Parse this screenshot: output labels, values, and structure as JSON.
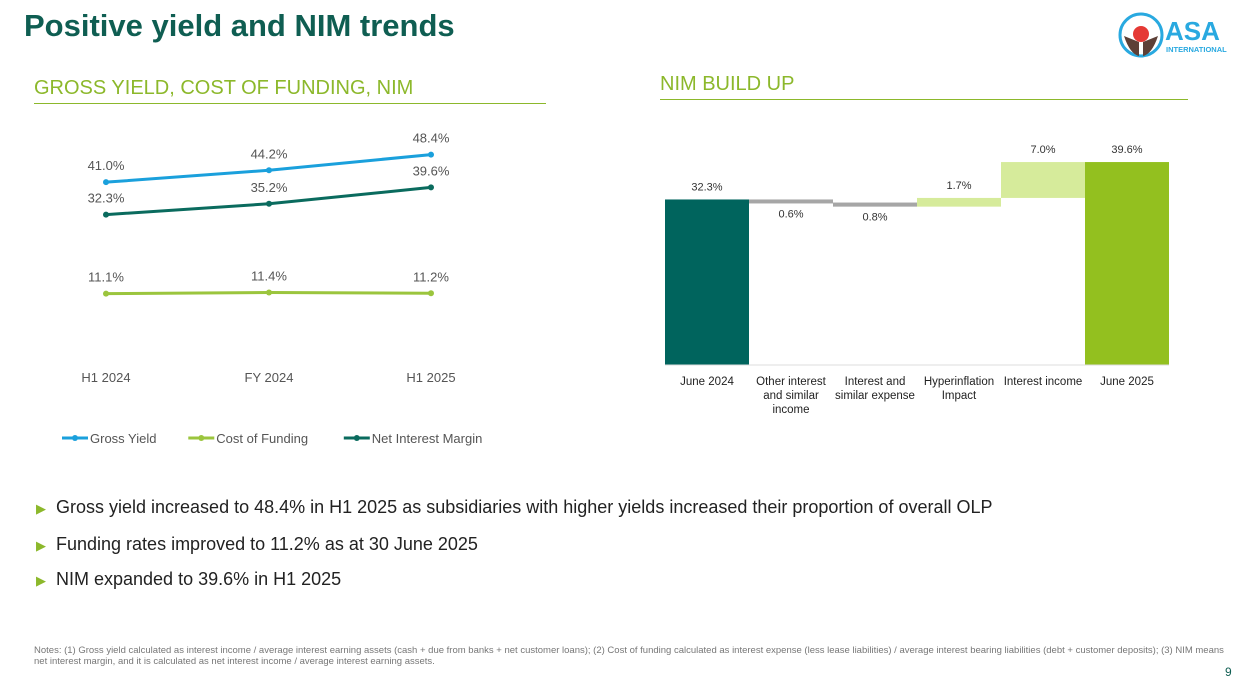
{
  "title": "Positive yield and NIM trends",
  "logo": {
    "name": "ASA",
    "sub": "INTERNATIONAL"
  },
  "page_number": "9",
  "bullets": [
    "Gross yield increased to 48.4% in H1 2025 as subsidiaries with higher yields increased their proportion of overall OLP",
    "Funding rates improved to 11.2% as at 30 June 2025",
    "NIM expanded to 39.6% in H1 2025"
  ],
  "notes": "Notes: (1) Gross yield calculated as interest income / average interest earning assets (cash + due from banks + net customer loans); (2) Cost of funding calculated as interest expense (less lease liabilities) / average interest bearing liabilities (debt + customer deposits); (3) NIM means net interest margin, and it is calculated as net interest income / average interest earning assets.",
  "chart_data": [
    {
      "type": "line",
      "title": "GROSS YIELD, COST OF FUNDING, NIM",
      "categories": [
        "H1 2024",
        "FY 2024",
        "H1 2025"
      ],
      "series": [
        {
          "name": "Gross Yield",
          "values": [
            41.0,
            44.2,
            48.4
          ],
          "labels": [
            "41.0%",
            "44.2%",
            "48.4%"
          ],
          "color": "#1aa0dc"
        },
        {
          "name": "Cost of Funding",
          "values": [
            11.1,
            11.4,
            11.2
          ],
          "labels": [
            "11.1%",
            "11.4%",
            "11.2%"
          ],
          "color": "#9bc53d"
        },
        {
          "name": "Net Interest Margin",
          "values": [
            32.3,
            35.2,
            39.6
          ],
          "labels": [
            "32.3%",
            "35.2%",
            "39.6%"
          ],
          "color": "#0a6b5e"
        }
      ],
      "ylim": [
        0,
        55
      ],
      "legend": "bottom"
    },
    {
      "type": "bar",
      "subtype": "waterfall",
      "title": "NIM BUILD UP",
      "categories": [
        "June 2024",
        "Other interest and similar income",
        "Interest and similar expense",
        "Hyperinflation Impact",
        "Interest income",
        "June 2025"
      ],
      "values": [
        32.3,
        -0.6,
        -0.8,
        1.7,
        7.0,
        39.6
      ],
      "labels": [
        "32.3%",
        "0.6%",
        "0.8%",
        "1.7%",
        "7.0%",
        "39.6%"
      ],
      "kinds": [
        "total",
        "decrease",
        "decrease",
        "increase",
        "increase",
        "total"
      ],
      "colors": {
        "start": "#00645d",
        "decrease": "#a6a6a6",
        "increase": "#d6eb9b",
        "end": "#93c01f"
      },
      "ylim": [
        0,
        40
      ]
    }
  ]
}
